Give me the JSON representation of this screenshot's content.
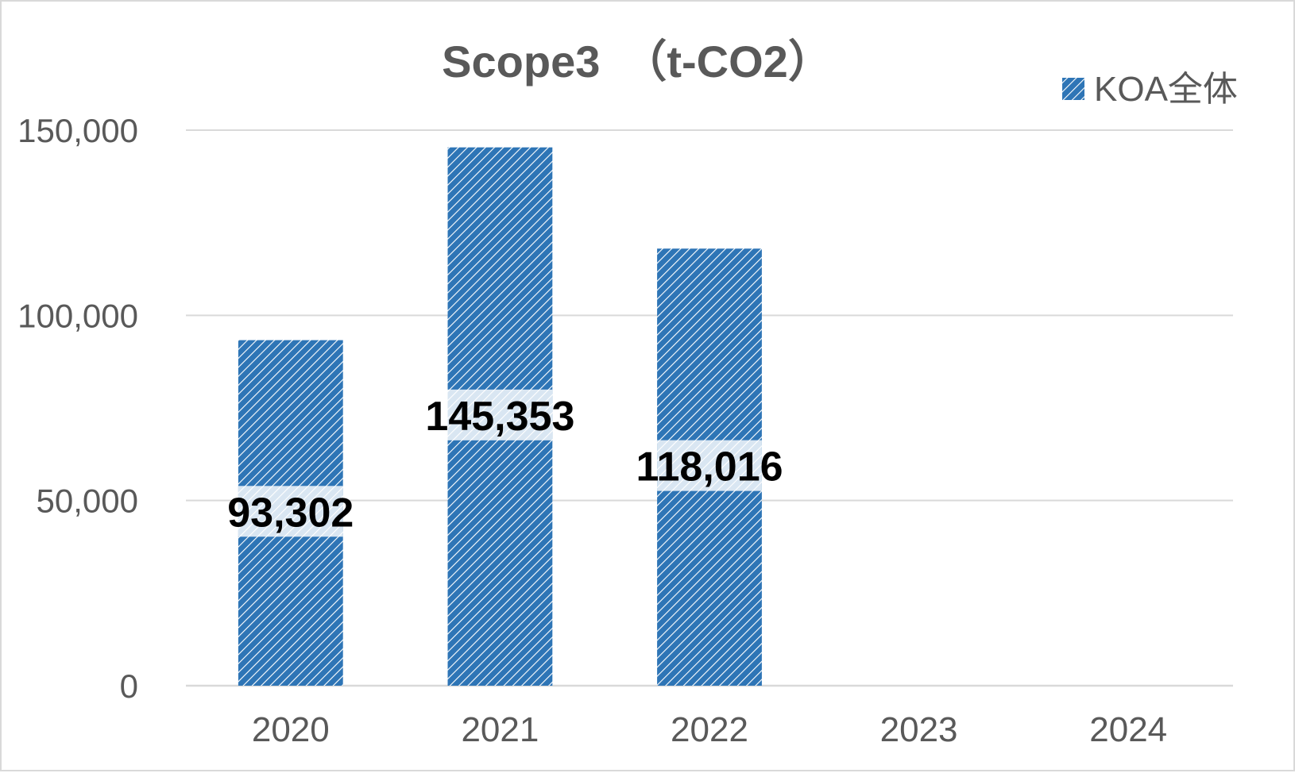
{
  "chart_data": {
    "type": "bar",
    "title": "Scope3　（t-CO2）",
    "categories": [
      "2020",
      "2021",
      "2022",
      "2023",
      "2024"
    ],
    "series": [
      {
        "name": "KOA全体",
        "values": [
          93302,
          145353,
          118016,
          null,
          null
        ],
        "color": "#2e75b6"
      }
    ],
    "data_labels": [
      "93,302",
      "145,353",
      "118,016",
      "",
      ""
    ],
    "ylim": [
      0,
      150000
    ],
    "yticks": [
      0,
      50000,
      100000,
      150000
    ],
    "ytick_labels": [
      "0",
      "50,000",
      "100,000",
      "150,000"
    ],
    "xlabel": "",
    "ylabel": "",
    "grid": true,
    "legend_position": "top-right",
    "bar_pattern": "diagonal-hatch"
  }
}
